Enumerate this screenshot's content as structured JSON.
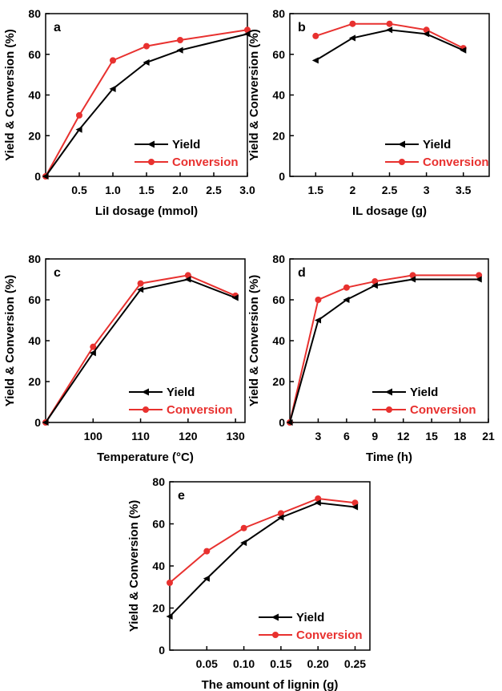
{
  "colors": {
    "yield": "#000000",
    "conversion": "#e8312f",
    "axis": "#000000"
  },
  "chart_data": [
    {
      "type": "line",
      "panel_label": "a",
      "xlabel": "LiI dosage (mmol)",
      "ylabel": "Yield & Conversion (%)",
      "xlim": [
        0,
        3.0
      ],
      "ylim": [
        0,
        80
      ],
      "xticks": [
        0.5,
        1.0,
        1.5,
        2.0,
        2.5,
        3.0
      ],
      "xtick_labels": [
        "0.5",
        "1.0",
        "1.5",
        "2.0",
        "2.5",
        "3.0"
      ],
      "yticks": [
        0,
        20,
        40,
        60,
        80
      ],
      "ytick_labels": [
        "0",
        "20",
        "40",
        "60",
        "80"
      ],
      "legend_position": "bottom-right",
      "grid": false,
      "series": [
        {
          "name": "Yield",
          "marker": "triangle-left",
          "x": [
            0,
            0.5,
            1.0,
            1.5,
            2.0,
            3.0
          ],
          "y": [
            0,
            23,
            43,
            56,
            62,
            70
          ]
        },
        {
          "name": "Conversion",
          "marker": "circle",
          "x": [
            0,
            0.5,
            1.0,
            1.5,
            2.0,
            3.0
          ],
          "y": [
            0,
            30,
            57,
            64,
            67,
            72
          ]
        }
      ]
    },
    {
      "type": "line",
      "panel_label": "b",
      "xlabel": "IL dosage (g)",
      "ylabel": "Yield & Conversion (%)",
      "xlim": [
        1.15,
        3.85
      ],
      "ylim": [
        0,
        80
      ],
      "xticks": [
        1.5,
        2,
        2.5,
        3,
        3.5
      ],
      "xtick_labels": [
        "1.5",
        "2",
        "2.5",
        "3",
        "3.5"
      ],
      "yticks": [
        0,
        20,
        40,
        60,
        80
      ],
      "ytick_labels": [
        "0",
        "20",
        "40",
        "60",
        "80"
      ],
      "legend_position": "bottom-right",
      "grid": false,
      "series": [
        {
          "name": "Yield",
          "marker": "triangle-left",
          "x": [
            1.5,
            2,
            2.5,
            3,
            3.5
          ],
          "y": [
            57,
            68,
            72,
            70,
            62
          ]
        },
        {
          "name": "Conversion",
          "marker": "circle",
          "x": [
            1.5,
            2,
            2.5,
            3,
            3.5
          ],
          "y": [
            69,
            75,
            75,
            72,
            63
          ]
        }
      ]
    },
    {
      "type": "line",
      "panel_label": "c",
      "xlabel": "Temperature (°C)",
      "ylabel": "Yield & Conversion (%)",
      "xlim": [
        90,
        132
      ],
      "ylim": [
        0,
        80
      ],
      "xticks": [
        100,
        110,
        120,
        130
      ],
      "xtick_labels": [
        "100",
        "110",
        "120",
        "130"
      ],
      "yticks": [
        0,
        20,
        40,
        60,
        80
      ],
      "ytick_labels": [
        "0",
        "20",
        "40",
        "60",
        "80"
      ],
      "legend_position": "bottom-right",
      "grid": false,
      "series": [
        {
          "name": "Yield",
          "marker": "triangle-left",
          "x": [
            90,
            100,
            110,
            120,
            130
          ],
          "y": [
            0,
            34,
            65,
            70,
            61
          ]
        },
        {
          "name": "Conversion",
          "marker": "circle",
          "x": [
            90,
            100,
            110,
            120,
            130
          ],
          "y": [
            0,
            37,
            68,
            72,
            62
          ]
        }
      ]
    },
    {
      "type": "line",
      "panel_label": "d",
      "xlabel": "Time (h)",
      "ylabel": "Yield & Conversion (%)",
      "xlim": [
        0,
        21
      ],
      "ylim": [
        0,
        80
      ],
      "xticks": [
        3,
        6,
        9,
        12,
        15,
        18,
        21
      ],
      "xtick_labels": [
        "3",
        "6",
        "9",
        "12",
        "15",
        "18",
        "21"
      ],
      "yticks": [
        0,
        20,
        40,
        60,
        80
      ],
      "ytick_labels": [
        "0",
        "20",
        "40",
        "60",
        "80"
      ],
      "legend_position": "bottom-right",
      "grid": false,
      "series": [
        {
          "name": "Yield",
          "marker": "triangle-left",
          "x": [
            0,
            3,
            6,
            9,
            13,
            20
          ],
          "y": [
            0,
            50,
            60,
            67,
            70,
            70
          ]
        },
        {
          "name": "Conversion",
          "marker": "circle",
          "x": [
            0,
            3,
            6,
            9,
            13,
            20
          ],
          "y": [
            0,
            60,
            66,
            69,
            72,
            72
          ]
        }
      ]
    },
    {
      "type": "line",
      "panel_label": "e",
      "xlabel": "The amount of lignin (g)",
      "ylabel": "Yield & Conversion (%)",
      "xlim": [
        0,
        0.27
      ],
      "ylim": [
        0,
        80
      ],
      "xticks": [
        0.05,
        0.1,
        0.15,
        0.2,
        0.25
      ],
      "xtick_labels": [
        "0.05",
        "0.10",
        "0.15",
        "0.20",
        "0.25"
      ],
      "yticks": [
        0,
        20,
        40,
        60,
        80
      ],
      "ytick_labels": [
        "0",
        "20",
        "40",
        "60",
        "80"
      ],
      "legend_position": "bottom-right",
      "grid": false,
      "series": [
        {
          "name": "Yield",
          "marker": "triangle-left",
          "x": [
            0,
            0.05,
            0.1,
            0.15,
            0.2,
            0.25
          ],
          "y": [
            16,
            34,
            51,
            63,
            70,
            68
          ]
        },
        {
          "name": "Conversion",
          "marker": "circle",
          "x": [
            0,
            0.05,
            0.1,
            0.15,
            0.2,
            0.25
          ],
          "y": [
            32,
            47,
            58,
            65,
            72,
            70
          ]
        }
      ]
    }
  ]
}
